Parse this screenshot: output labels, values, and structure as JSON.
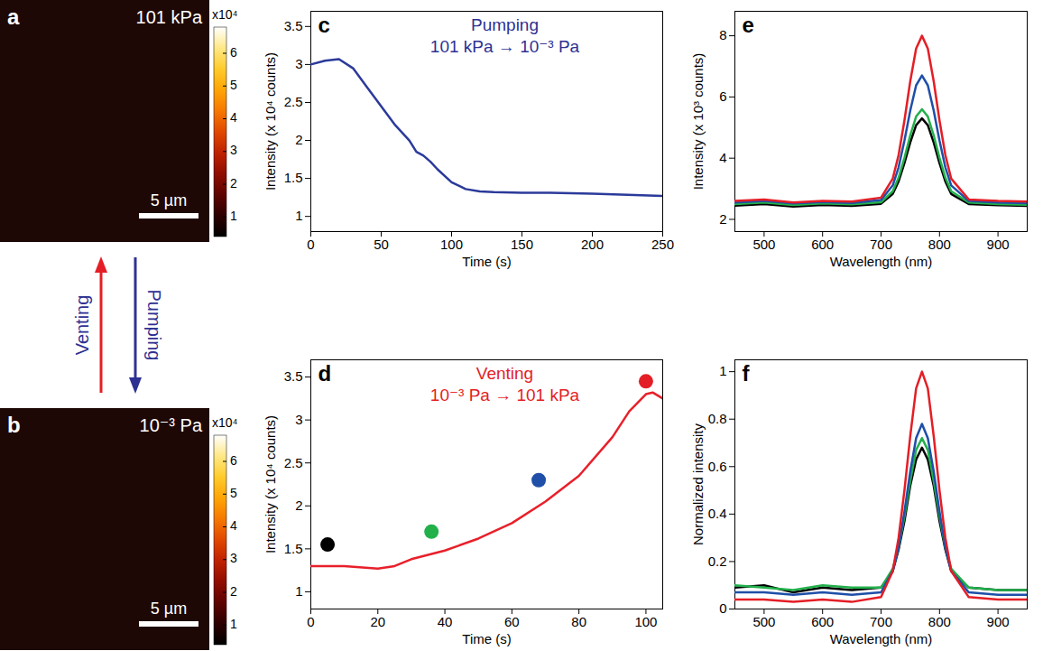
{
  "chart_data": [
    {
      "type": "image",
      "panel": "a",
      "label": "101 kPa",
      "scale_bar": "5 µm",
      "colorbar": {
        "label": "x10⁴",
        "range": [
          0.4,
          6.8
        ],
        "ticks": [
          1,
          2,
          3,
          4,
          5,
          6
        ]
      }
    },
    {
      "type": "image",
      "panel": "b",
      "label": "10⁻³ Pa",
      "scale_bar": "5 µm",
      "colorbar": {
        "label": "x10⁴",
        "range": [
          0.4,
          6.8
        ],
        "ticks": [
          1,
          2,
          3,
          4,
          5,
          6
        ]
      }
    },
    {
      "type": "line",
      "panel": "c",
      "x_label": "Time (s)",
      "y_label": "Intensity (x 10⁴ counts)",
      "annotations": [
        "Pumping",
        "101 kPa → 10⁻³ Pa"
      ],
      "color": "#2e3192",
      "x": [
        0,
        10,
        20,
        30,
        40,
        50,
        60,
        70,
        75,
        80,
        85,
        90,
        100,
        110,
        120,
        130,
        150,
        170,
        200,
        230,
        250
      ],
      "series": [
        {
          "color": "#2b3a9a",
          "values": [
            3.0,
            3.05,
            3.07,
            2.95,
            2.7,
            2.45,
            2.2,
            2.0,
            1.85,
            1.8,
            1.72,
            1.62,
            1.45,
            1.36,
            1.33,
            1.32,
            1.31,
            1.31,
            1.3,
            1.28,
            1.27
          ]
        }
      ],
      "xlim": [
        0,
        250
      ],
      "xticks": [
        0,
        50,
        100,
        150,
        200,
        250
      ],
      "ylim": [
        0.8,
        3.7
      ],
      "yticks": [
        1,
        1.5,
        2,
        2.5,
        3,
        3.5
      ]
    },
    {
      "type": "line",
      "panel": "d",
      "x_label": "Time (s)",
      "y_label": "Intensity (x 10⁴ counts)",
      "annotations": [
        "Venting",
        "10⁻³ Pa → 101 kPa"
      ],
      "color": "#e41e26",
      "x": [
        0,
        10,
        20,
        25,
        30,
        40,
        50,
        60,
        70,
        80,
        90,
        95,
        100,
        102,
        105
      ],
      "series": [
        {
          "type": "line",
          "color": "#e8202a",
          "values": [
            1.3,
            1.3,
            1.27,
            1.3,
            1.38,
            1.48,
            1.62,
            1.8,
            2.05,
            2.35,
            2.8,
            3.1,
            3.3,
            3.32,
            3.25
          ]
        },
        {
          "type": "scatter",
          "marker": "circle",
          "x": [
            5,
            36,
            68,
            100
          ],
          "values": [
            1.55,
            1.7,
            2.3,
            3.45
          ],
          "colors": [
            "#000000",
            "#22b04b",
            "#1f4fa8",
            "#e41e26"
          ]
        }
      ],
      "xlim": [
        0,
        105
      ],
      "xticks": [
        0,
        20,
        40,
        60,
        80,
        100
      ],
      "ylim": [
        0.8,
        3.7
      ],
      "yticks": [
        1,
        1.5,
        2,
        2.5,
        3,
        3.5
      ]
    },
    {
      "type": "line",
      "panel": "e",
      "x_label": "Wavelength (nm)",
      "y_label": "Intensity (x 10³ counts)",
      "x": [
        450,
        500,
        550,
        600,
        650,
        700,
        720,
        730,
        740,
        750,
        760,
        770,
        780,
        790,
        800,
        810,
        820,
        850,
        900,
        950
      ],
      "series": [
        {
          "color": "#000000",
          "values": [
            2.45,
            2.5,
            2.42,
            2.47,
            2.44,
            2.51,
            2.83,
            3.24,
            3.84,
            4.52,
            5.08,
            5.3,
            5.08,
            4.52,
            3.84,
            3.24,
            2.83,
            2.5,
            2.46,
            2.44
          ]
        },
        {
          "color": "#22b04b",
          "values": [
            2.5,
            2.55,
            2.47,
            2.52,
            2.49,
            2.56,
            2.92,
            3.36,
            4.01,
            4.75,
            5.36,
            5.6,
            5.36,
            4.75,
            4.01,
            3.36,
            2.92,
            2.55,
            2.5,
            2.48
          ]
        },
        {
          "color": "#1f4fa8",
          "values": [
            2.55,
            2.6,
            2.52,
            2.57,
            2.54,
            2.63,
            3.11,
            3.7,
            4.57,
            5.56,
            6.38,
            6.7,
            6.38,
            5.56,
            4.57,
            3.7,
            3.11,
            2.6,
            2.55,
            2.53
          ]
        },
        {
          "color": "#e41e26",
          "values": [
            2.6,
            2.65,
            2.55,
            2.6,
            2.58,
            2.71,
            3.33,
            4.1,
            5.23,
            6.52,
            7.58,
            8.0,
            7.58,
            6.52,
            5.23,
            4.1,
            3.33,
            2.65,
            2.6,
            2.58
          ]
        }
      ],
      "xlim": [
        450,
        950
      ],
      "xticks": [
        500,
        600,
        700,
        800,
        900
      ],
      "ylim": [
        1.6,
        8.8
      ],
      "yticks": [
        2,
        4,
        6,
        8
      ]
    },
    {
      "type": "line",
      "panel": "f",
      "x_label": "Wavelength (nm)",
      "y_label": "Normalized intensity",
      "x": [
        450,
        500,
        550,
        600,
        650,
        700,
        720,
        730,
        740,
        750,
        760,
        770,
        780,
        790,
        800,
        810,
        820,
        850,
        900,
        950
      ],
      "series": [
        {
          "color": "#000000",
          "values": [
            0.09,
            0.1,
            0.07,
            0.09,
            0.08,
            0.09,
            0.16,
            0.25,
            0.37,
            0.52,
            0.63,
            0.68,
            0.63,
            0.52,
            0.37,
            0.25,
            0.16,
            0.09,
            0.08,
            0.08
          ]
        },
        {
          "color": "#22b04b",
          "values": [
            0.1,
            0.09,
            0.08,
            0.1,
            0.09,
            0.09,
            0.17,
            0.26,
            0.39,
            0.54,
            0.67,
            0.72,
            0.67,
            0.54,
            0.39,
            0.26,
            0.17,
            0.09,
            0.08,
            0.08
          ]
        },
        {
          "color": "#1f4fa8",
          "values": [
            0.07,
            0.07,
            0.06,
            0.07,
            0.06,
            0.07,
            0.16,
            0.26,
            0.41,
            0.58,
            0.72,
            0.78,
            0.72,
            0.58,
            0.41,
            0.26,
            0.16,
            0.07,
            0.06,
            0.06
          ]
        },
        {
          "color": "#e41e26",
          "values": [
            0.04,
            0.04,
            0.03,
            0.04,
            0.03,
            0.05,
            0.16,
            0.3,
            0.5,
            0.73,
            0.93,
            1.0,
            0.93,
            0.73,
            0.5,
            0.3,
            0.16,
            0.05,
            0.04,
            0.04
          ]
        }
      ],
      "xlim": [
        450,
        950
      ],
      "xticks": [
        500,
        600,
        700,
        800,
        900
      ],
      "ylim": [
        0,
        1.05
      ],
      "yticks": [
        0,
        0.2,
        0.4,
        0.6,
        0.8,
        1
      ]
    }
  ],
  "between_images": [
    {
      "text": "Venting",
      "color": "#e41e26"
    },
    {
      "text": "Pumping",
      "color": "#2e3192"
    }
  ]
}
